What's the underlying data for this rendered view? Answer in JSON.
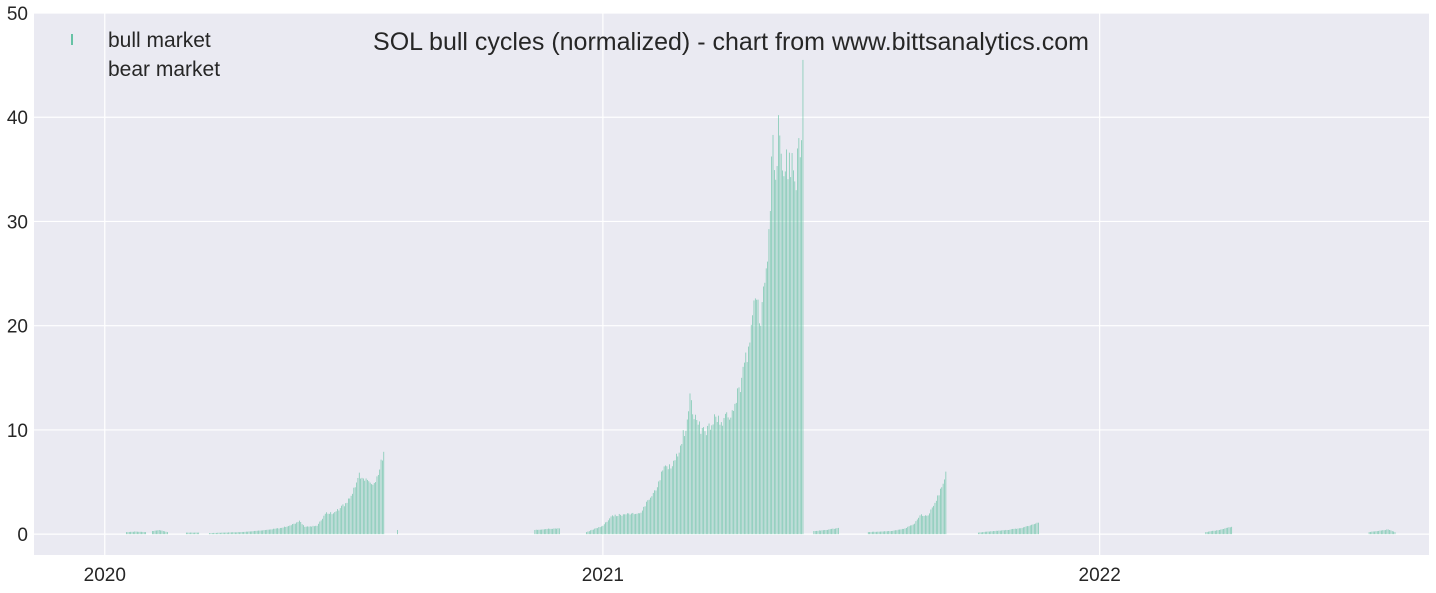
{
  "chart_data": {
    "type": "bar",
    "title": "SOL bull cycles (normalized)  - chart from www.bittsanalytics.com",
    "xlabel": "",
    "ylabel": "",
    "ylim": [
      -2,
      50
    ],
    "xlim": [
      "2019-11-10",
      "2022-08-31"
    ],
    "y_ticks": [
      0,
      10,
      20,
      30,
      40,
      50
    ],
    "x_ticks": [
      {
        "label": "2020",
        "date": "2020-01-01"
      },
      {
        "label": "2021",
        "date": "2021-01-01"
      },
      {
        "label": "2022",
        "date": "2022-01-01"
      }
    ],
    "grid": true,
    "legend_position": "top-left",
    "background_color": "#eaeaf2",
    "grid_color": "#ffffff",
    "series": [
      {
        "name": "bull market",
        "color": "#66c2a5",
        "segments": [
          {
            "start": "2020-01-17",
            "end": "2020-01-31",
            "points": [
              [
                "2020-01-17",
                0.2
              ],
              [
                "2020-01-24",
                0.25
              ],
              [
                "2020-01-31",
                0.2
              ]
            ]
          },
          {
            "start": "2020-02-05",
            "end": "2020-02-16",
            "points": [
              [
                "2020-02-05",
                0.3
              ],
              [
                "2020-02-10",
                0.4
              ],
              [
                "2020-02-16",
                0.2
              ]
            ]
          },
          {
            "start": "2020-03-01",
            "end": "2020-03-10",
            "points": [
              [
                "2020-03-01",
                0.15
              ],
              [
                "2020-03-10",
                0.15
              ]
            ]
          },
          {
            "start": "2020-03-18",
            "end": "2020-07-24",
            "points": [
              [
                "2020-03-18",
                0.1
              ],
              [
                "2020-04-10",
                0.2
              ],
              [
                "2020-04-25",
                0.35
              ],
              [
                "2020-05-10",
                0.6
              ],
              [
                "2020-05-20",
                1.0
              ],
              [
                "2020-05-23",
                1.3
              ],
              [
                "2020-05-27",
                0.7
              ],
              [
                "2020-06-05",
                0.8
              ],
              [
                "2020-06-12",
                2.1
              ],
              [
                "2020-06-17",
                2.0
              ],
              [
                "2020-06-27",
                3.0
              ],
              [
                "2020-07-03",
                4.5
              ],
              [
                "2020-07-06",
                5.9
              ],
              [
                "2020-07-08",
                5.4
              ],
              [
                "2020-07-12",
                5.2
              ],
              [
                "2020-07-15",
                4.8
              ],
              [
                "2020-07-18",
                5.0
              ],
              [
                "2020-07-21",
                6.2
              ],
              [
                "2020-07-24",
                7.9
              ]
            ]
          },
          {
            "start": "2020-08-03",
            "end": "2020-08-03",
            "points": [
              [
                "2020-08-03",
                0.4
              ]
            ]
          },
          {
            "start": "2020-11-12",
            "end": "2020-11-30",
            "points": [
              [
                "2020-11-12",
                0.4
              ],
              [
                "2020-11-21",
                0.5
              ],
              [
                "2020-11-30",
                0.55
              ]
            ]
          },
          {
            "start": "2020-12-20",
            "end": "2021-05-28",
            "points": [
              [
                "2020-12-20",
                0.2
              ],
              [
                "2021-01-01",
                0.8
              ],
              [
                "2021-01-08",
                1.8
              ],
              [
                "2021-01-18",
                1.9
              ],
              [
                "2021-01-28",
                2.0
              ],
              [
                "2021-02-05",
                3.5
              ],
              [
                "2021-02-10",
                4.5
              ],
              [
                "2021-02-15",
                6.5
              ],
              [
                "2021-02-20",
                6.3
              ],
              [
                "2021-02-27",
                8.5
              ],
              [
                "2021-03-04",
                11.0
              ],
              [
                "2021-03-06",
                13.5
              ],
              [
                "2021-03-08",
                11.5
              ],
              [
                "2021-03-12",
                10.5
              ],
              [
                "2021-03-18",
                9.5
              ],
              [
                "2021-03-24",
                11.5
              ],
              [
                "2021-03-28",
                10.5
              ],
              [
                "2021-04-03",
                11.2
              ],
              [
                "2021-04-08",
                12.5
              ],
              [
                "2021-04-13",
                15.0
              ],
              [
                "2021-04-18",
                18.0
              ],
              [
                "2021-04-21",
                21.0
              ],
              [
                "2021-04-25",
                22.5
              ],
              [
                "2021-04-27",
                20.0
              ],
              [
                "2021-05-01",
                25.5
              ],
              [
                "2021-05-04",
                31.0
              ],
              [
                "2021-05-06",
                38.3
              ],
              [
                "2021-05-08",
                34.0
              ],
              [
                "2021-05-10",
                40.2
              ],
              [
                "2021-05-12",
                36.5
              ],
              [
                "2021-05-15",
                34.8
              ],
              [
                "2021-05-18",
                36.6
              ],
              [
                "2021-05-21",
                34.9
              ],
              [
                "2021-05-23",
                33.0
              ],
              [
                "2021-05-25",
                38.0
              ],
              [
                "2021-05-27",
                37.8
              ],
              [
                "2021-05-28",
                45.5
              ]
            ]
          },
          {
            "start": "2021-06-05",
            "end": "2021-06-23",
            "points": [
              [
                "2021-06-05",
                0.3
              ],
              [
                "2021-06-14",
                0.4
              ],
              [
                "2021-06-23",
                0.6
              ]
            ]
          },
          {
            "start": "2021-07-15",
            "end": "2021-09-10",
            "points": [
              [
                "2021-07-15",
                0.2
              ],
              [
                "2021-08-01",
                0.3
              ],
              [
                "2021-08-10",
                0.5
              ],
              [
                "2021-08-18",
                1.0
              ],
              [
                "2021-08-22",
                1.8
              ],
              [
                "2021-08-28",
                1.8
              ],
              [
                "2021-09-02",
                3.0
              ],
              [
                "2021-09-07",
                4.5
              ],
              [
                "2021-09-10",
                6.0
              ]
            ]
          },
          {
            "start": "2021-10-04",
            "end": "2021-11-17",
            "points": [
              [
                "2021-10-04",
                0.15
              ],
              [
                "2021-10-15",
                0.3
              ],
              [
                "2021-10-25",
                0.4
              ],
              [
                "2021-11-05",
                0.6
              ],
              [
                "2021-11-12",
                0.9
              ],
              [
                "2021-11-17",
                1.1
              ]
            ]
          },
          {
            "start": "2022-03-20",
            "end": "2022-04-08",
            "points": [
              [
                "2022-03-20",
                0.2
              ],
              [
                "2022-03-30",
                0.4
              ],
              [
                "2022-04-08",
                0.7
              ]
            ]
          },
          {
            "start": "2022-07-18",
            "end": "2022-08-06",
            "points": [
              [
                "2022-07-18",
                0.2
              ],
              [
                "2022-07-27",
                0.35
              ],
              [
                "2022-08-01",
                0.45
              ],
              [
                "2022-08-06",
                0.2
              ]
            ]
          }
        ]
      },
      {
        "name": "bear market",
        "color": "#fc8d62",
        "segments": []
      }
    ]
  }
}
